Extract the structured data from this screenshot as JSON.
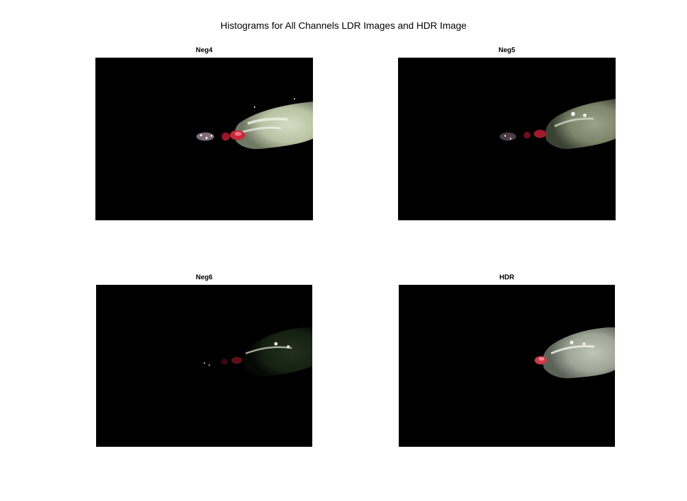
{
  "figure": {
    "title": "Histograms for All Channels LDR Images and HDR Image",
    "background": "#ffffff"
  },
  "panels": [
    {
      "title": "Neg4",
      "exposure": "bright",
      "image_bg": "#000000"
    },
    {
      "title": "Neg5",
      "exposure": "medium",
      "image_bg": "#000000"
    },
    {
      "title": "Neg6",
      "exposure": "dark",
      "image_bg": "#000000"
    },
    {
      "title": "HDR",
      "exposure": "tonemapped",
      "image_bg": "#000000"
    }
  ]
}
